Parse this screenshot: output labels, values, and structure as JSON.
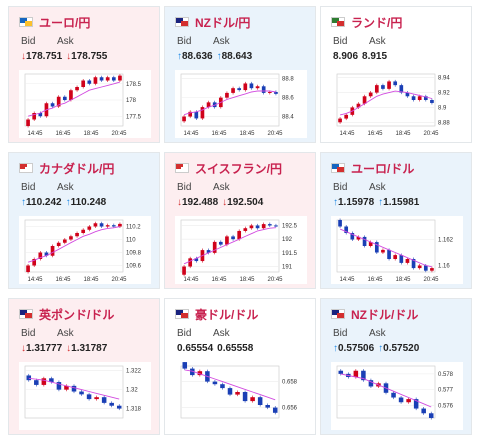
{
  "cards": [
    {
      "title": "ユーロ/円",
      "trend": "down",
      "bid_arrow": "↓",
      "ask_arrow": "↓",
      "bid": "178.751",
      "ask": "178.755",
      "bid_label": "Bid",
      "ask_label": "Ask",
      "flag": [
        "#1565c0",
        "#fbc02d"
      ],
      "yticks": [
        "178.5",
        "178",
        "177.5"
      ],
      "xticks": [
        "14:45",
        "16:45",
        "18:45",
        "20:45"
      ],
      "ylim": [
        177.2,
        178.8
      ],
      "closes": [
        177.4,
        177.6,
        177.5,
        177.9,
        177.8,
        178.1,
        178.0,
        178.3,
        178.4,
        178.6,
        178.5,
        178.7,
        178.6,
        178.7,
        178.6,
        178.75
      ],
      "ma": [
        177.5,
        177.55,
        177.6,
        177.7,
        177.75,
        177.85,
        177.9,
        178.0,
        178.1,
        178.2,
        178.3,
        178.35,
        178.4,
        178.45,
        178.5,
        178.55
      ]
    },
    {
      "title": "NZドル/円",
      "trend": "up",
      "bid_arrow": "↑",
      "ask_arrow": "↑",
      "bid": "88.636",
      "ask": "88.643",
      "bid_label": "Bid",
      "ask_label": "Ask",
      "flag": [
        "#1a237e",
        "#d32f2f"
      ],
      "yticks": [
        "88.8",
        "88.6",
        "88.4"
      ],
      "xticks": [
        "14:45",
        "16:45",
        "18:45",
        "20:45"
      ],
      "ylim": [
        88.3,
        88.85
      ],
      "closes": [
        88.4,
        88.45,
        88.38,
        88.5,
        88.55,
        88.5,
        88.6,
        88.65,
        88.7,
        88.68,
        88.75,
        88.7,
        88.72,
        88.65,
        88.66,
        88.64
      ],
      "ma": [
        88.42,
        88.44,
        88.45,
        88.47,
        88.5,
        88.52,
        88.55,
        88.58,
        88.6,
        88.62,
        88.64,
        88.66,
        88.67,
        88.67,
        88.67,
        88.66
      ]
    },
    {
      "title": "ランド/円",
      "trend": "flat",
      "bid_arrow": "",
      "ask_arrow": "",
      "bid": "8.906",
      "ask": "8.915",
      "bid_label": "Bid",
      "ask_label": "Ask",
      "flag": [
        "#2e7d32",
        "#d32f2f"
      ],
      "yticks": [
        "8.94",
        "8.92",
        "8.9",
        "8.88"
      ],
      "xticks": [
        "14:45",
        "16:45",
        "18:45",
        "20:45"
      ],
      "ylim": [
        8.875,
        8.945
      ],
      "closes": [
        8.885,
        8.89,
        8.9,
        8.905,
        8.915,
        8.92,
        8.93,
        8.925,
        8.935,
        8.93,
        8.92,
        8.915,
        8.91,
        8.915,
        8.91,
        8.906
      ],
      "ma": [
        8.89,
        8.892,
        8.895,
        8.9,
        8.905,
        8.91,
        8.915,
        8.918,
        8.92,
        8.922,
        8.921,
        8.92,
        8.918,
        8.916,
        8.914,
        8.912
      ]
    },
    {
      "title": "カナダドル/円",
      "trend": "up",
      "bid_arrow": "↑",
      "ask_arrow": "↑",
      "bid": "110.242",
      "ask": "110.248",
      "bid_label": "Bid",
      "ask_label": "Ask",
      "flag": [
        "#d32f2f",
        "#ffffff"
      ],
      "yticks": [
        "110.2",
        "110",
        "109.8",
        "109.6"
      ],
      "xticks": [
        "14:45",
        "16:45",
        "18:45",
        "20:45"
      ],
      "ylim": [
        109.5,
        110.3
      ],
      "closes": [
        109.6,
        109.7,
        109.8,
        109.75,
        109.9,
        109.95,
        110.0,
        110.05,
        110.1,
        110.15,
        110.2,
        110.25,
        110.2,
        110.22,
        110.2,
        110.24
      ],
      "ma": [
        109.65,
        109.68,
        109.72,
        109.75,
        109.8,
        109.85,
        109.9,
        109.95,
        110.0,
        110.05,
        110.08,
        110.12,
        110.15,
        110.17,
        110.18,
        110.2
      ]
    },
    {
      "title": "スイスフラン/円",
      "trend": "down",
      "bid_arrow": "↓",
      "ask_arrow": "↓",
      "bid": "192.488",
      "ask": "192.504",
      "bid_label": "Bid",
      "ask_label": "Ask",
      "flag": [
        "#d32f2f",
        "#ffffff"
      ],
      "yticks": [
        "192.5",
        "192",
        "191.5",
        "191"
      ],
      "xticks": [
        "14:45",
        "16:45",
        "18:45",
        "20:45"
      ],
      "ylim": [
        190.8,
        192.7
      ],
      "closes": [
        191.0,
        191.3,
        191.2,
        191.6,
        191.5,
        191.9,
        191.8,
        192.1,
        192.0,
        192.3,
        192.4,
        192.5,
        192.4,
        192.55,
        192.5,
        192.49
      ],
      "ma": [
        191.1,
        191.2,
        191.3,
        191.4,
        191.5,
        191.6,
        191.7,
        191.8,
        191.9,
        192.0,
        192.1,
        192.2,
        192.3,
        192.35,
        192.4,
        192.42
      ]
    },
    {
      "title": "ユーロ/ドル",
      "trend": "up",
      "bid_arrow": "↑",
      "ask_arrow": "↑",
      "bid": "1.15978",
      "ask": "1.15981",
      "bid_label": "Bid",
      "ask_label": "Ask",
      "flag": [
        "#1565c0",
        "#d32f2f"
      ],
      "yticks": [
        "1.162",
        "1.16"
      ],
      "xticks": [
        "14:45",
        "16:45",
        "18:45",
        "20:45"
      ],
      "ylim": [
        1.1595,
        1.1635
      ],
      "closes": [
        1.163,
        1.1625,
        1.162,
        1.1622,
        1.1615,
        1.1618,
        1.161,
        1.1612,
        1.1605,
        1.1608,
        1.1602,
        1.1605,
        1.1598,
        1.16,
        1.1596,
        1.1598
      ],
      "ma": [
        1.1628,
        1.1626,
        1.1624,
        1.1622,
        1.162,
        1.1618,
        1.1616,
        1.1614,
        1.1612,
        1.161,
        1.1608,
        1.1606,
        1.1604,
        1.1602,
        1.16,
        1.1599
      ]
    },
    {
      "title": "英ポンド/ドル",
      "trend": "down",
      "bid_arrow": "↓",
      "ask_arrow": "↓",
      "bid": "1.31777",
      "ask": "1.31787",
      "bid_label": "Bid",
      "ask_label": "Ask",
      "flag": [
        "#1a237e",
        "#d32f2f"
      ],
      "yticks": [
        "1.322",
        "1.32",
        "1.318"
      ],
      "xticks": [],
      "ylim": [
        1.317,
        1.3225
      ],
      "closes": [
        1.321,
        1.3205,
        1.3212,
        1.3208,
        1.32,
        1.3204,
        1.3198,
        1.3195,
        1.319,
        1.3192,
        1.3186,
        1.3183,
        1.318
      ],
      "ma": [
        1.3212,
        1.3211,
        1.321,
        1.3208,
        1.3206,
        1.3204,
        1.3202,
        1.32,
        1.3198,
        1.3196,
        1.3194,
        1.3192,
        1.319
      ]
    },
    {
      "title": "豪ドル/ドル",
      "trend": "flat",
      "bid_arrow": "",
      "ask_arrow": "",
      "bid": "0.65554",
      "ask": "0.65558",
      "bid_label": "Bid",
      "ask_label": "Ask",
      "flag": [
        "#1a237e",
        "#d32f2f"
      ],
      "yticks": [
        "0.658",
        "0.656"
      ],
      "xticks": [],
      "ylim": [
        0.6552,
        0.6592
      ],
      "closes": [
        0.659,
        0.6585,
        0.6588,
        0.658,
        0.6578,
        0.6575,
        0.657,
        0.6572,
        0.6565,
        0.6568,
        0.6562,
        0.656,
        0.6556
      ],
      "ma": [
        0.6589,
        0.6588,
        0.6586,
        0.6584,
        0.6582,
        0.658,
        0.6578,
        0.6576,
        0.6574,
        0.6572,
        0.657,
        0.6568,
        0.6566
      ]
    },
    {
      "title": "NZドル/ドル",
      "trend": "up",
      "bid_arrow": "↑",
      "ask_arrow": "↑",
      "bid": "0.57506",
      "ask": "0.57520",
      "bid_label": "Bid",
      "ask_label": "Ask",
      "flag": [
        "#1a237e",
        "#d32f2f"
      ],
      "yticks": [
        "0.578",
        "0.577",
        "0.576"
      ],
      "xticks": [],
      "ylim": [
        0.5752,
        0.5785
      ],
      "closes": [
        0.578,
        0.5778,
        0.5782,
        0.5776,
        0.5772,
        0.5774,
        0.5768,
        0.5765,
        0.5762,
        0.5764,
        0.5758,
        0.5755,
        0.5752
      ],
      "ma": [
        0.578,
        0.5779,
        0.5778,
        0.5777,
        0.5775,
        0.5773,
        0.5771,
        0.5769,
        0.5767,
        0.5765,
        0.5763,
        0.5761,
        0.5759
      ]
    }
  ]
}
